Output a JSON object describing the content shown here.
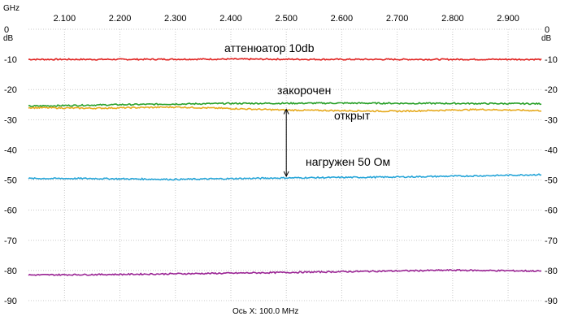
{
  "chart_data": {
    "type": "line",
    "x_unit": "GHz",
    "y_unit": "dB",
    "xlim": [
      2.035,
      2.96
    ],
    "ylim": [
      -90,
      0
    ],
    "x_ticks": [
      "2.100",
      "2.200",
      "2.300",
      "2.400",
      "2.500",
      "2.600",
      "2.700",
      "2.800",
      "2.900"
    ],
    "x_tick_values": [
      2.1,
      2.2,
      2.3,
      2.4,
      2.5,
      2.6,
      2.7,
      2.8,
      2.9
    ],
    "y_ticks": [
      "0",
      "-10",
      "-20",
      "-30",
      "-40",
      "-50",
      "-60",
      "-70",
      "-80",
      "-90"
    ],
    "y_tick_values": [
      0,
      -10,
      -20,
      -30,
      -40,
      -50,
      -60,
      -70,
      -80,
      -90
    ],
    "axis_caption": "Ось X: 100.0 MHz",
    "grid": true,
    "series": [
      {
        "name": "аттенюатор 10db",
        "color": "#e0201e",
        "x": [
          2.035,
          2.2,
          2.4,
          2.6,
          2.8,
          2.96
        ],
        "y": [
          -10.0,
          -10.0,
          -9.9,
          -10.0,
          -10.0,
          -10.0
        ]
      },
      {
        "name": "закорочен",
        "color": "#2aa12a",
        "x": [
          2.035,
          2.2,
          2.4,
          2.6,
          2.8,
          2.96
        ],
        "y": [
          -25.5,
          -25.0,
          -24.6,
          -24.5,
          -24.6,
          -24.7
        ]
      },
      {
        "name": "открыт",
        "color": "#e6aa1e",
        "x": [
          2.035,
          2.15,
          2.3,
          2.5,
          2.7,
          2.85,
          2.96
        ],
        "y": [
          -26.0,
          -26.2,
          -25.8,
          -26.8,
          -27.2,
          -26.6,
          -27.0
        ]
      },
      {
        "name": "нагружен 50 Ом",
        "color": "#26a5d8",
        "x": [
          2.035,
          2.15,
          2.3,
          2.5,
          2.7,
          2.85,
          2.96
        ],
        "y": [
          -49.5,
          -49.5,
          -49.8,
          -49.3,
          -49.0,
          -48.6,
          -48.2
        ]
      },
      {
        "name": "",
        "color": "#9a2494",
        "x": [
          2.035,
          2.2,
          2.4,
          2.6,
          2.8,
          2.96
        ],
        "y": [
          -81.5,
          -81.3,
          -80.9,
          -80.4,
          -79.9,
          -80.2
        ]
      }
    ],
    "annotations": {
      "arrow": {
        "x": 2.5,
        "y_from": -26.0,
        "y_to": -49.3
      }
    }
  }
}
